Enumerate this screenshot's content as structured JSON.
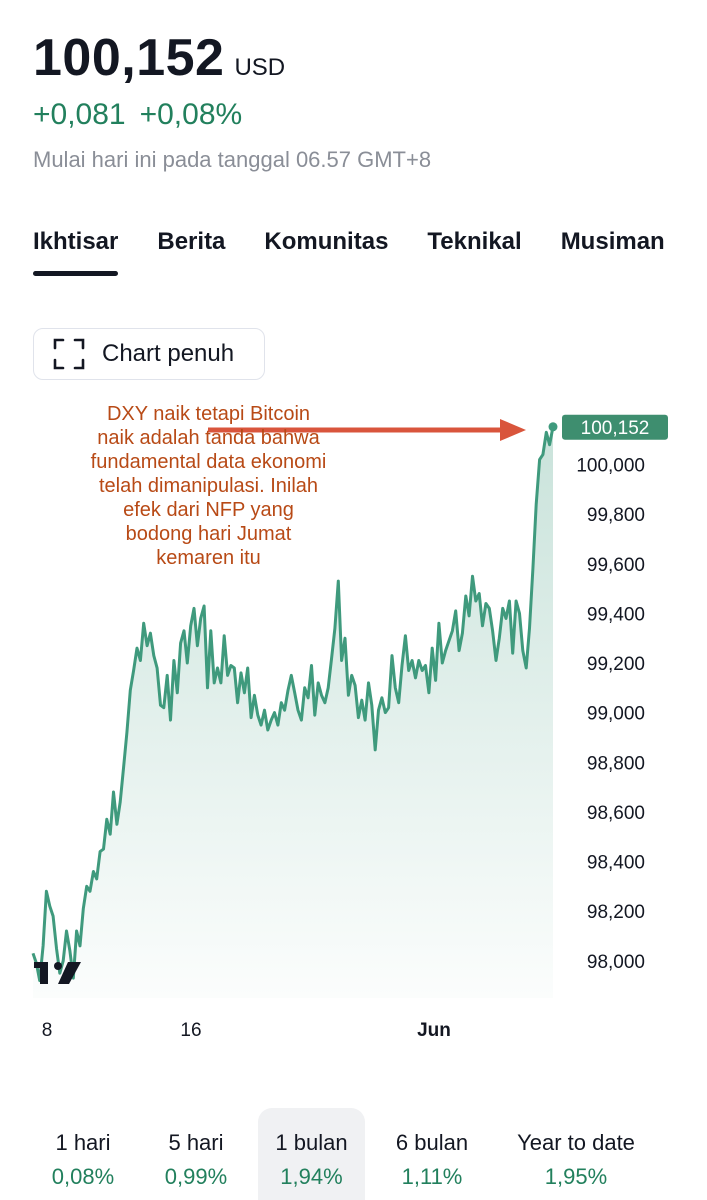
{
  "quote": {
    "price": "100,152",
    "currency": "USD",
    "change_abs": "+0,081",
    "change_pct": "+0,08%",
    "session_note": "Mulai hari ini pada tanggal 06.57 GMT+8"
  },
  "tabs": [
    {
      "label": "Ikhtisar",
      "active": true
    },
    {
      "label": "Berita",
      "active": false
    },
    {
      "label": "Komunitas",
      "active": false
    },
    {
      "label": "Teknikal",
      "active": false
    },
    {
      "label": "Musiman",
      "active": false
    }
  ],
  "full_chart_button": {
    "label": "Chart penuh",
    "icon": "expand-icon"
  },
  "annotation": {
    "lines": [
      "DXY naik tetapi Bitcoin",
      "naik adalah tanda bahwa",
      "fundamental data ekonomi",
      "telah dimanipulasi. Inilah",
      "efek dari NFP yang",
      "bodong hari Jumat",
      "kemaren itu"
    ],
    "color": "#b84a16",
    "arrow_color": "#d9553c"
  },
  "chart_data": {
    "type": "area",
    "ylim": [
      97850,
      100260
    ],
    "y_ticks": [
      98000,
      98200,
      98400,
      98600,
      98800,
      99000,
      99200,
      99400,
      99600,
      99800,
      100000
    ],
    "y_tick_labels": [
      "98,000",
      "98,200",
      "98,400",
      "98,600",
      "98,800",
      "99,000",
      "99,200",
      "99,400",
      "99,600",
      "99,800",
      "100,000"
    ],
    "x_tick_labels": [
      {
        "label": "8",
        "bold": false
      },
      {
        "label": "16",
        "bold": false
      },
      {
        "label": "Jun",
        "bold": true
      }
    ],
    "last_value_label": "100,152",
    "line_color": "#3f9a7d",
    "label_bg": "#3e8e6f",
    "series": [
      {
        "x": [
          0,
          1,
          2,
          3,
          4,
          5,
          6,
          7,
          8,
          9,
          10,
          11,
          12,
          13,
          14,
          15,
          16,
          17,
          18,
          19,
          20,
          21,
          22,
          23,
          24,
          25,
          26,
          27,
          28,
          29,
          30,
          31,
          32,
          33,
          34,
          35,
          36,
          37,
          38,
          39,
          40,
          41,
          42,
          43,
          44,
          45,
          46,
          47,
          48,
          49,
          50,
          51,
          52,
          53,
          54,
          55,
          56,
          57,
          58,
          59,
          60,
          61,
          62,
          63,
          64,
          65,
          66,
          67,
          68,
          69,
          70,
          71,
          72,
          73,
          74,
          75,
          76,
          77,
          78,
          79,
          80,
          81,
          82,
          83,
          84,
          85,
          86,
          87,
          88,
          89,
          90,
          91,
          92,
          93,
          94,
          95,
          96,
          97,
          98,
          99,
          100,
          101,
          102,
          103,
          104,
          105,
          106,
          107,
          108,
          109,
          110,
          111,
          112,
          113,
          114,
          115,
          116,
          117,
          118,
          119,
          120,
          121,
          122,
          123,
          124,
          125,
          126,
          127,
          128,
          129,
          130,
          131,
          132,
          133,
          134,
          135,
          136,
          137,
          138,
          139,
          140,
          141,
          142,
          143,
          144,
          145,
          146,
          147,
          148,
          149,
          150,
          151,
          152,
          153,
          154,
          155
        ],
        "values": [
          98030,
          97990,
          97920,
          98060,
          98280,
          98220,
          98180,
          98050,
          97950,
          98000,
          98120,
          98040,
          97930,
          98120,
          98060,
          98210,
          98300,
          98280,
          98360,
          98330,
          98440,
          98450,
          98570,
          98510,
          98680,
          98550,
          98640,
          98780,
          98920,
          99090,
          99170,
          99260,
          99210,
          99360,
          99270,
          99320,
          99230,
          99180,
          99030,
          99020,
          99150,
          98970,
          99210,
          99080,
          99280,
          99330,
          99200,
          99350,
          99420,
          99270,
          99380,
          99430,
          99100,
          99330,
          99120,
          99180,
          99120,
          99310,
          99150,
          99190,
          99180,
          99040,
          99160,
          99080,
          99180,
          98980,
          99070,
          98990,
          98950,
          99010,
          98930,
          98970,
          99000,
          98950,
          99040,
          99010,
          99090,
          99150,
          99080,
          99010,
          98970,
          99100,
          99060,
          99190,
          98990,
          99120,
          99070,
          99040,
          99100,
          99220,
          99340,
          99530,
          99210,
          99300,
          99070,
          99150,
          99110,
          98980,
          99050,
          98970,
          99120,
          99030,
          98850,
          99010,
          99060,
          99000,
          99020,
          99230,
          99100,
          99040,
          99190,
          99310,
          99170,
          99210,
          99140,
          99210,
          99170,
          99190,
          99080,
          99260,
          99130,
          99360,
          99200,
          99250,
          99290,
          99330,
          99410,
          99250,
          99320,
          99470,
          99390,
          99550,
          99450,
          99480,
          99350,
          99440,
          99420,
          99330,
          99210,
          99300,
          99420,
          99380,
          99450,
          99240,
          99450,
          99400,
          99250,
          99180,
          99340,
          99580,
          99840,
          100020,
          100040,
          100130,
          100080,
          100152
        ]
      }
    ]
  },
  "time_ranges": [
    {
      "label": "1 hari",
      "change": "0,08%",
      "active": false
    },
    {
      "label": "5 hari",
      "change": "0,99%",
      "active": false
    },
    {
      "label": "1 bulan",
      "change": "1,94%",
      "active": true
    },
    {
      "label": "6 bulan",
      "change": "1,11%",
      "active": false
    },
    {
      "label": "Year to date",
      "change": "1,95%",
      "active": false
    }
  ]
}
